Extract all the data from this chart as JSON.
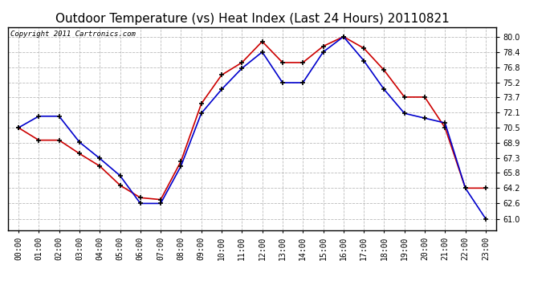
{
  "title": "Outdoor Temperature (vs) Heat Index (Last 24 Hours) 20110821",
  "copyright": "Copyright 2011 Cartronics.com",
  "hours": [
    "00:00",
    "01:00",
    "02:00",
    "03:00",
    "04:00",
    "05:00",
    "06:00",
    "07:00",
    "08:00",
    "09:00",
    "10:00",
    "11:00",
    "12:00",
    "13:00",
    "14:00",
    "15:00",
    "16:00",
    "17:00",
    "18:00",
    "19:00",
    "20:00",
    "21:00",
    "22:00",
    "23:00"
  ],
  "temp": [
    70.5,
    71.7,
    71.7,
    69.0,
    67.3,
    65.5,
    62.6,
    62.6,
    66.5,
    72.0,
    74.5,
    76.7,
    78.4,
    75.2,
    75.2,
    78.4,
    80.0,
    77.5,
    74.5,
    72.0,
    71.5,
    71.0,
    64.2,
    61.0
  ],
  "heat_index": [
    70.5,
    69.2,
    69.2,
    67.8,
    66.5,
    64.5,
    63.2,
    63.0,
    67.0,
    73.0,
    76.0,
    77.3,
    79.5,
    77.3,
    77.3,
    79.0,
    80.0,
    78.8,
    76.5,
    73.7,
    73.7,
    70.5,
    64.2,
    64.2
  ],
  "blue_color": "#0000cc",
  "red_color": "#cc0000",
  "bg_color": "#ffffff",
  "grid_color": "#aaaaaa",
  "yticks": [
    61.0,
    62.6,
    64.2,
    65.8,
    67.3,
    68.9,
    70.5,
    72.1,
    73.7,
    75.2,
    76.8,
    78.4,
    80.0
  ],
  "title_fontsize": 11,
  "copyright_fontsize": 6.5,
  "tick_fontsize": 7,
  "ylim_min": 59.8,
  "ylim_max": 81.0
}
